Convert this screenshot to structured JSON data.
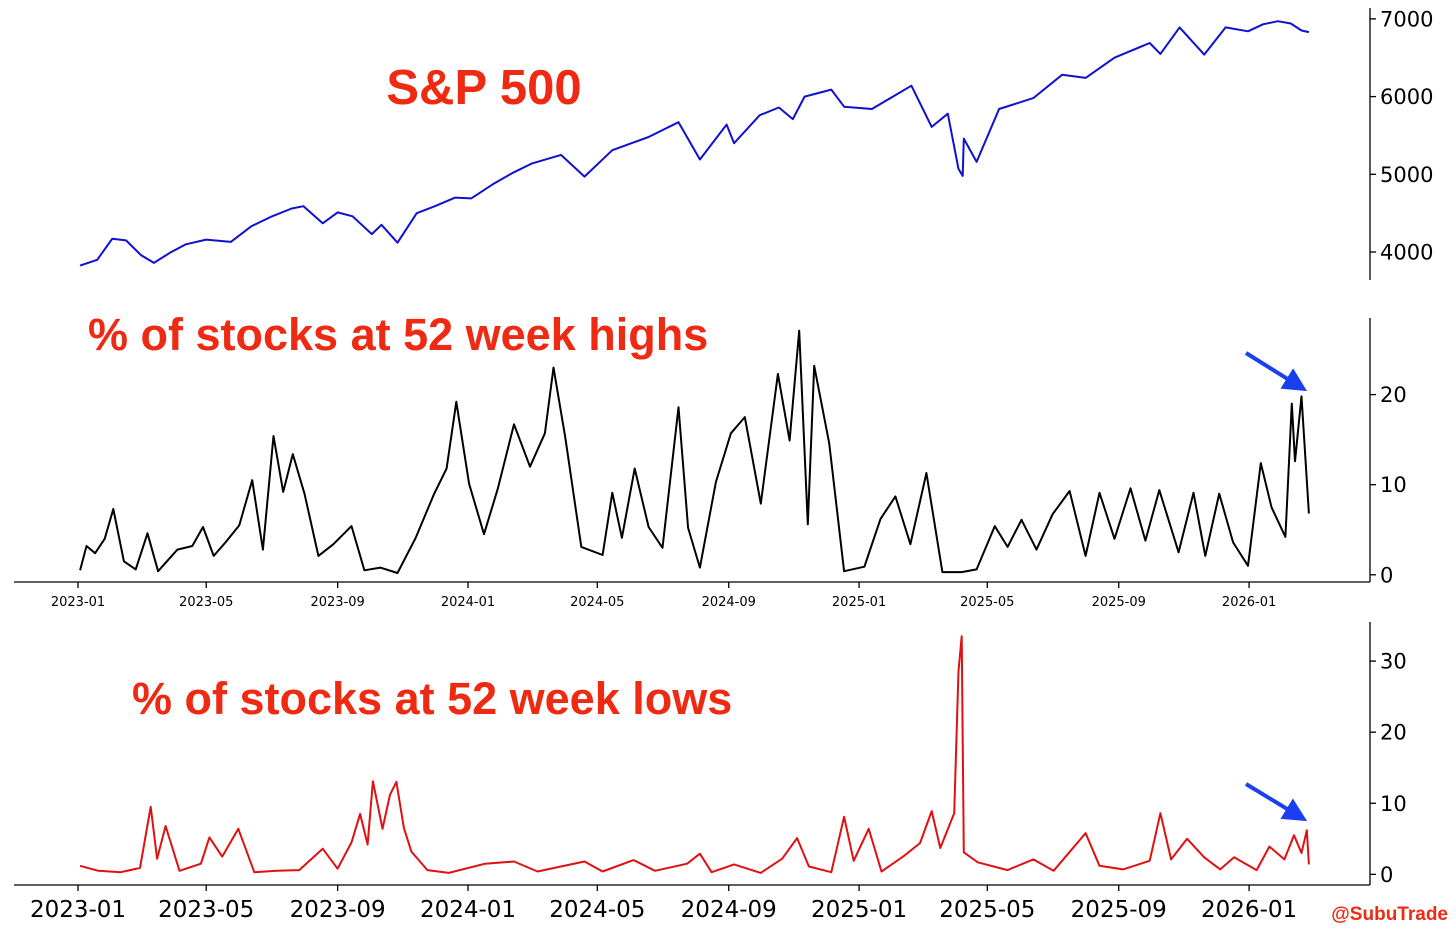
{
  "watermark": "@SubuTrade",
  "colors": {
    "title": "#ee2a12",
    "sp500_line": "#1010d0",
    "highs_line": "#000000",
    "lows_line": "#e01010",
    "arrow": "#1a3ff0",
    "watermark": "#ee2a12"
  },
  "chart_data": [
    {
      "type": "line",
      "title": "S&P 500",
      "xlabel": "",
      "ylabel": "",
      "x_range": [
        "2023-01-01",
        "2026-02-27"
      ],
      "ylim": [
        3640,
        7140
      ],
      "yticks": [
        4000,
        5000,
        6000,
        7000
      ],
      "xticks": [],
      "grid": false,
      "y_axis_side": "right",
      "series": [
        {
          "color": "#1010d0",
          "points": [
            [
              "2023-01-03",
              3825
            ],
            [
              "2023-01-19",
              3900
            ],
            [
              "2023-02-02",
              4170
            ],
            [
              "2023-02-15",
              4150
            ],
            [
              "2023-03-01",
              3960
            ],
            [
              "2023-03-13",
              3860
            ],
            [
              "2023-03-28",
              3990
            ],
            [
              "2023-04-12",
              4100
            ],
            [
              "2023-05-01",
              4160
            ],
            [
              "2023-05-24",
              4130
            ],
            [
              "2023-06-12",
              4330
            ],
            [
              "2023-06-30",
              4450
            ],
            [
              "2023-07-20",
              4560
            ],
            [
              "2023-07-31",
              4590
            ],
            [
              "2023-08-18",
              4370
            ],
            [
              "2023-09-01",
              4510
            ],
            [
              "2023-09-15",
              4460
            ],
            [
              "2023-10-03",
              4230
            ],
            [
              "2023-10-12",
              4350
            ],
            [
              "2023-10-27",
              4120
            ],
            [
              "2023-11-14",
              4500
            ],
            [
              "2023-12-01",
              4590
            ],
            [
              "2023-12-20",
              4700
            ],
            [
              "2024-01-04",
              4690
            ],
            [
              "2024-01-24",
              4870
            ],
            [
              "2024-02-12",
              5020
            ],
            [
              "2024-03-01",
              5140
            ],
            [
              "2024-03-28",
              5250
            ],
            [
              "2024-04-19",
              4970
            ],
            [
              "2024-05-15",
              5310
            ],
            [
              "2024-06-18",
              5480
            ],
            [
              "2024-07-16",
              5670
            ],
            [
              "2024-08-05",
              5190
            ],
            [
              "2024-08-30",
              5640
            ],
            [
              "2024-09-06",
              5400
            ],
            [
              "2024-09-30",
              5760
            ],
            [
              "2024-10-18",
              5860
            ],
            [
              "2024-10-31",
              5710
            ],
            [
              "2024-11-11",
              6000
            ],
            [
              "2024-12-06",
              6090
            ],
            [
              "2024-12-18",
              5870
            ],
            [
              "2025-01-13",
              5840
            ],
            [
              "2025-02-19",
              6140
            ],
            [
              "2025-03-10",
              5610
            ],
            [
              "2025-03-25",
              5780
            ],
            [
              "2025-04-04",
              5070
            ],
            [
              "2025-04-08",
              4980
            ],
            [
              "2025-04-09",
              5460
            ],
            [
              "2025-04-21",
              5160
            ],
            [
              "2025-05-12",
              5840
            ],
            [
              "2025-06-13",
              5980
            ],
            [
              "2025-07-10",
              6280
            ],
            [
              "2025-08-01",
              6240
            ],
            [
              "2025-08-28",
              6500
            ],
            [
              "2025-09-30",
              6690
            ],
            [
              "2025-10-10",
              6550
            ],
            [
              "2025-10-28",
              6890
            ],
            [
              "2025-11-20",
              6540
            ],
            [
              "2025-12-10",
              6890
            ],
            [
              "2025-12-31",
              6840
            ],
            [
              "2026-01-14",
              6930
            ],
            [
              "2026-01-28",
              6970
            ],
            [
              "2026-02-09",
              6940
            ],
            [
              "2026-02-19",
              6850
            ],
            [
              "2026-02-26",
              6830
            ]
          ]
        }
      ]
    },
    {
      "type": "line",
      "title": "% of stocks at 52 week highs",
      "xlabel": "",
      "ylabel": "",
      "x_range": [
        "2023-01-01",
        "2026-02-27"
      ],
      "ylim": [
        -0.8,
        28.5
      ],
      "yticks": [
        0,
        10,
        20
      ],
      "xticks": [
        "2023-01",
        "2023-05",
        "2023-09",
        "2024-01",
        "2024-05",
        "2024-09",
        "2025-01",
        "2025-05",
        "2025-09",
        "2026-01"
      ],
      "grid": false,
      "y_axis_side": "right",
      "annotation": "arrow pointing at the latest reading",
      "series": [
        {
          "color": "#000000",
          "points": [
            [
              "2023-01-03",
              0.5
            ],
            [
              "2023-01-09",
              3.2
            ],
            [
              "2023-01-17",
              2.4
            ],
            [
              "2023-01-26",
              4.0
            ],
            [
              "2023-02-03",
              7.3
            ],
            [
              "2023-02-13",
              1.5
            ],
            [
              "2023-02-24",
              0.6
            ],
            [
              "2023-03-07",
              4.6
            ],
            [
              "2023-03-17",
              0.4
            ],
            [
              "2023-04-04",
              2.8
            ],
            [
              "2023-04-18",
              3.2
            ],
            [
              "2023-04-28",
              5.3
            ],
            [
              "2023-05-08",
              2.1
            ],
            [
              "2023-05-19",
              3.6
            ],
            [
              "2023-06-01",
              5.5
            ],
            [
              "2023-06-13",
              10.5
            ],
            [
              "2023-06-23",
              2.8
            ],
            [
              "2023-07-03",
              15.4
            ],
            [
              "2023-07-12",
              9.2
            ],
            [
              "2023-07-21",
              13.4
            ],
            [
              "2023-08-01",
              9.0
            ],
            [
              "2023-08-14",
              2.1
            ],
            [
              "2023-08-28",
              3.4
            ],
            [
              "2023-09-14",
              5.4
            ],
            [
              "2023-09-26",
              0.5
            ],
            [
              "2023-10-11",
              0.8
            ],
            [
              "2023-10-27",
              0.2
            ],
            [
              "2023-11-13",
              4.1
            ],
            [
              "2023-11-30",
              8.9
            ],
            [
              "2023-12-12",
              11.8
            ],
            [
              "2023-12-21",
              19.2
            ],
            [
              "2024-01-02",
              10.1
            ],
            [
              "2024-01-16",
              4.5
            ],
            [
              "2024-01-29",
              9.6
            ],
            [
              "2024-02-13",
              16.7
            ],
            [
              "2024-02-28",
              12.0
            ],
            [
              "2024-03-13",
              15.7
            ],
            [
              "2024-03-21",
              23.0
            ],
            [
              "2024-04-01",
              15.3
            ],
            [
              "2024-04-16",
              3.1
            ],
            [
              "2024-05-06",
              2.2
            ],
            [
              "2024-05-15",
              9.1
            ],
            [
              "2024-05-24",
              4.1
            ],
            [
              "2024-06-05",
              11.8
            ],
            [
              "2024-06-18",
              5.3
            ],
            [
              "2024-07-01",
              3.0
            ],
            [
              "2024-07-16",
              18.6
            ],
            [
              "2024-07-25",
              5.2
            ],
            [
              "2024-08-05",
              0.8
            ],
            [
              "2024-08-20",
              10.3
            ],
            [
              "2024-09-03",
              15.7
            ],
            [
              "2024-09-16",
              17.5
            ],
            [
              "2024-10-01",
              7.9
            ],
            [
              "2024-10-17",
              22.3
            ],
            [
              "2024-10-28",
              14.9
            ],
            [
              "2024-11-06",
              27.1
            ],
            [
              "2024-11-14",
              5.6
            ],
            [
              "2024-11-20",
              23.2
            ],
            [
              "2024-12-04",
              14.6
            ],
            [
              "2024-12-18",
              0.4
            ],
            [
              "2025-01-06",
              0.9
            ],
            [
              "2025-01-21",
              6.2
            ],
            [
              "2025-02-04",
              8.7
            ],
            [
              "2025-02-18",
              3.4
            ],
            [
              "2025-03-05",
              11.3
            ],
            [
              "2025-03-20",
              0.3
            ],
            [
              "2025-04-07",
              0.3
            ],
            [
              "2025-04-21",
              0.6
            ],
            [
              "2025-05-08",
              5.4
            ],
            [
              "2025-05-20",
              3.1
            ],
            [
              "2025-06-02",
              6.1
            ],
            [
              "2025-06-16",
              2.8
            ],
            [
              "2025-07-01",
              6.7
            ],
            [
              "2025-07-17",
              9.3
            ],
            [
              "2025-08-01",
              2.1
            ],
            [
              "2025-08-14",
              9.1
            ],
            [
              "2025-08-28",
              4.0
            ],
            [
              "2025-09-12",
              9.6
            ],
            [
              "2025-09-26",
              3.8
            ],
            [
              "2025-10-09",
              9.4
            ],
            [
              "2025-10-27",
              2.5
            ],
            [
              "2025-11-10",
              9.1
            ],
            [
              "2025-11-21",
              2.1
            ],
            [
              "2025-12-04",
              9.0
            ],
            [
              "2025-12-17",
              3.6
            ],
            [
              "2025-12-31",
              1.0
            ],
            [
              "2026-01-12",
              12.4
            ],
            [
              "2026-01-22",
              7.5
            ],
            [
              "2026-02-04",
              4.2
            ],
            [
              "2026-02-10",
              19.0
            ],
            [
              "2026-02-13",
              12.6
            ],
            [
              "2026-02-19",
              19.8
            ],
            [
              "2026-02-26",
              6.8
            ]
          ]
        }
      ]
    },
    {
      "type": "line",
      "title": "% of stocks at 52 week lows",
      "xlabel": "",
      "ylabel": "",
      "x_range": [
        "2023-01-01",
        "2026-02-27"
      ],
      "ylim": [
        -1.5,
        35.5
      ],
      "yticks": [
        0,
        10,
        20,
        30
      ],
      "xticks": [
        "2023-01",
        "2023-05",
        "2023-09",
        "2024-01",
        "2024-05",
        "2024-09",
        "2025-01",
        "2025-05",
        "2025-09",
        "2026-01"
      ],
      "grid": false,
      "y_axis_side": "right",
      "annotation": "arrow pointing at the latest reading",
      "series": [
        {
          "color": "#e01010",
          "points": [
            [
              "2023-01-03",
              1.2
            ],
            [
              "2023-01-20",
              0.5
            ],
            [
              "2023-02-10",
              0.3
            ],
            [
              "2023-02-28",
              0.9
            ],
            [
              "2023-03-10",
              9.5
            ],
            [
              "2023-03-16",
              2.2
            ],
            [
              "2023-03-24",
              6.8
            ],
            [
              "2023-04-06",
              0.5
            ],
            [
              "2023-04-26",
              1.5
            ],
            [
              "2023-05-04",
              5.2
            ],
            [
              "2023-05-16",
              2.5
            ],
            [
              "2023-05-31",
              6.4
            ],
            [
              "2023-06-15",
              0.3
            ],
            [
              "2023-07-06",
              0.5
            ],
            [
              "2023-07-27",
              0.6
            ],
            [
              "2023-08-18",
              3.6
            ],
            [
              "2023-09-01",
              0.8
            ],
            [
              "2023-09-14",
              4.5
            ],
            [
              "2023-09-22",
              8.5
            ],
            [
              "2023-09-29",
              4.2
            ],
            [
              "2023-10-04",
              13.1
            ],
            [
              "2023-10-13",
              6.4
            ],
            [
              "2023-10-20",
              11.2
            ],
            [
              "2023-10-26",
              13.0
            ],
            [
              "2023-11-02",
              6.5
            ],
            [
              "2023-11-09",
              3.2
            ],
            [
              "2023-11-24",
              0.6
            ],
            [
              "2023-12-14",
              0.2
            ],
            [
              "2024-01-17",
              1.5
            ],
            [
              "2024-02-13",
              1.8
            ],
            [
              "2024-03-06",
              0.4
            ],
            [
              "2024-04-19",
              1.8
            ],
            [
              "2024-05-06",
              0.4
            ],
            [
              "2024-06-04",
              2.0
            ],
            [
              "2024-06-24",
              0.5
            ],
            [
              "2024-07-24",
              1.5
            ],
            [
              "2024-08-05",
              2.9
            ],
            [
              "2024-08-16",
              0.3
            ],
            [
              "2024-09-06",
              1.4
            ],
            [
              "2024-10-01",
              0.2
            ],
            [
              "2024-10-21",
              2.2
            ],
            [
              "2024-11-04",
              5.1
            ],
            [
              "2024-11-15",
              1.1
            ],
            [
              "2024-12-06",
              0.3
            ],
            [
              "2024-12-18",
              8.1
            ],
            [
              "2024-12-27",
              1.9
            ],
            [
              "2025-01-10",
              6.4
            ],
            [
              "2025-01-22",
              0.4
            ],
            [
              "2025-02-12",
              2.6
            ],
            [
              "2025-02-27",
              4.4
            ],
            [
              "2025-03-10",
              8.9
            ],
            [
              "2025-03-18",
              3.7
            ],
            [
              "2025-03-31",
              8.6
            ],
            [
              "2025-04-04",
              28.6
            ],
            [
              "2025-04-07",
              33.5
            ],
            [
              "2025-04-09",
              3.1
            ],
            [
              "2025-04-22",
              1.7
            ],
            [
              "2025-05-20",
              0.6
            ],
            [
              "2025-06-13",
              2.1
            ],
            [
              "2025-07-02",
              0.5
            ],
            [
              "2025-08-01",
              5.8
            ],
            [
              "2025-08-14",
              1.2
            ],
            [
              "2025-09-05",
              0.7
            ],
            [
              "2025-09-30",
              1.9
            ],
            [
              "2025-10-10",
              8.6
            ],
            [
              "2025-10-20",
              2.1
            ],
            [
              "2025-11-04",
              5.0
            ],
            [
              "2025-11-20",
              2.4
            ],
            [
              "2025-12-05",
              0.7
            ],
            [
              "2025-12-18",
              2.4
            ],
            [
              "2026-01-08",
              0.6
            ],
            [
              "2026-01-20",
              3.9
            ],
            [
              "2026-02-03",
              2.1
            ],
            [
              "2026-02-12",
              5.5
            ],
            [
              "2026-02-19",
              3.0
            ],
            [
              "2026-02-24",
              6.2
            ],
            [
              "2026-02-26",
              1.4
            ]
          ]
        }
      ]
    }
  ]
}
